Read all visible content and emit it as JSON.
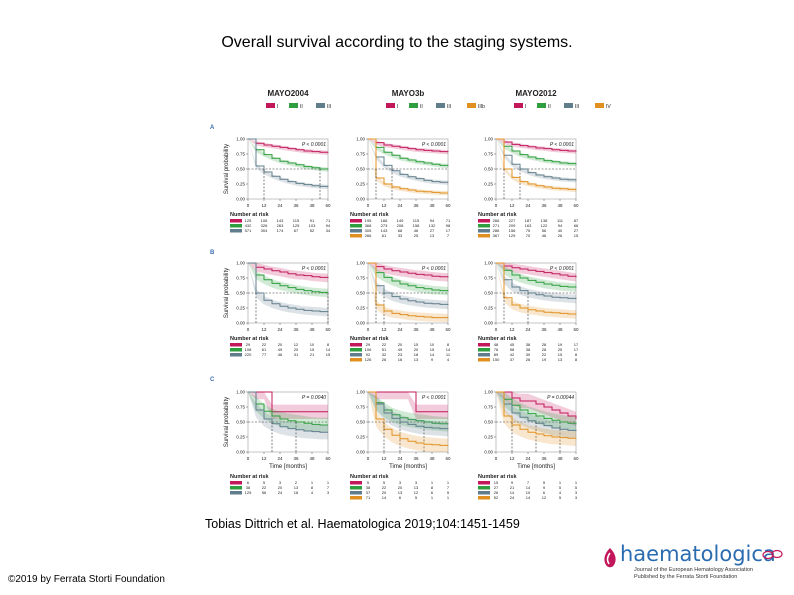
{
  "slide": {
    "title": "Overall survival according to the staging systems.",
    "citation": "Tobias Dittrich et al. Haematologica 2019;104:1451-1459",
    "copyright": "©2019 by Ferrata Storti Foundation",
    "logo": {
      "brand": "haematologica",
      "subtitle_1": "Journal of the European Hematology Association",
      "subtitle_2": "Published by the Ferrata Storti Foundation"
    }
  },
  "figure": {
    "row_labels": [
      "A",
      "B",
      "C"
    ],
    "y_axis_label": "Survival probability",
    "x_axis_label": "Time [months]",
    "risk_table_title": "Number at risk",
    "y_tick_labels": [
      "1.00",
      "0.75",
      "0.50",
      "0.25",
      "0.00"
    ],
    "x_tick_labels": [
      "0",
      "12",
      "24",
      "36",
      "48",
      "60"
    ],
    "colors": {
      "I": "#c2185b",
      "II": "#2e9e3e",
      "III": "#607d8b",
      "IIIb": "#e09020",
      "IV": "#e09020"
    },
    "columns": [
      {
        "title": "MAYO2004",
        "legend": [
          "I",
          "II",
          "III"
        ],
        "pvalues": [
          "P < 0.0001",
          "P < 0.0001",
          "P = 0.0040"
        ],
        "risk": [
          [
            [
              "125",
              "106",
              "143",
              "115",
              "91",
              "71"
            ],
            [
              "432",
              "326",
              "263",
              "125",
              "103",
              "94"
            ],
            [
              "571",
              "304",
              "174",
              "67",
              "52",
              "34"
            ]
          ],
          [
            [
              "29",
              "22",
              "20",
              "12",
              "10",
              "8"
            ],
            [
              "108",
              "61",
              "49",
              "20",
              "15",
              "14"
            ],
            [
              "220",
              "77",
              "46",
              "31",
              "21",
              "15"
            ]
          ],
          [
            [
              "6",
              "5",
              "3",
              "2",
              "1",
              "1"
            ],
            [
              "38",
              "22",
              "20",
              "13",
              "8",
              "7"
            ],
            [
              "125",
              "56",
              "24",
              "18",
              "4",
              "3"
            ]
          ]
        ]
      },
      {
        "title": "MAYO3b",
        "legend": [
          "I",
          "II",
          "III",
          "IIIb"
        ],
        "pvalues": [
          "P < 0.0001",
          "P < 0.0001",
          "P < 0.0001"
        ],
        "risk": [
          [
            [
              "195",
              "166",
              "149",
              "115",
              "94",
              "71"
            ],
            [
              "368",
              "273",
              "208",
              "158",
              "132",
              "98"
            ],
            [
              "305",
              "143",
              "68",
              "46",
              "27",
              "17"
            ],
            [
              "266",
              "61",
              "33",
              "25",
              "13",
              "7"
            ]
          ],
          [
            [
              "29",
              "22",
              "20",
              "15",
              "10",
              "8"
            ],
            [
              "106",
              "51",
              "49",
              "20",
              "15",
              "14"
            ],
            [
              "92",
              "32",
              "23",
              "18",
              "14",
              "11"
            ],
            [
              "126",
              "26",
              "16",
              "13",
              "9",
              "4"
            ]
          ],
          [
            [
              "5",
              "5",
              "3",
              "3",
              "1",
              "1"
            ],
            [
              "38",
              "22",
              "20",
              "13",
              "8",
              "7"
            ],
            [
              "37",
              "20",
              "13",
              "12",
              "6",
              "5"
            ],
            [
              "71",
              "14",
              "6",
              "5",
              "1",
              "1"
            ]
          ]
        ]
      },
      {
        "title": "MAYO2012",
        "legend": [
          "I",
          "II",
          "III",
          "IV"
        ],
        "pvalues": [
          "P < 0.0001",
          "P < 0.0001",
          "P = 0.00044"
        ],
        "risk": [
          [
            [
              "266",
              "227",
              "187",
              "138",
              "111",
              "87"
            ],
            [
              "271",
              "209",
              "163",
              "122",
              "94",
              "66"
            ],
            [
              "286",
              "156",
              "75",
              "56",
              "40",
              "27"
            ],
            [
              "367",
              "129",
              "70",
              "46",
              "26",
              "15"
            ]
          ],
          [
            [
              "48",
              "45",
              "38",
              "28",
              "19",
              "17"
            ],
            [
              "76",
              "58",
              "38",
              "28",
              "25",
              "17"
            ],
            [
              "89",
              "42",
              "30",
              "22",
              "15",
              "8"
            ],
            [
              "150",
              "37",
              "26",
              "19",
              "13",
              "8"
            ]
          ],
          [
            [
              "15",
              "9",
              "7",
              "5",
              "1",
              "1"
            ],
            [
              "27",
              "21",
              "14",
              "9",
              "5",
              "5"
            ],
            [
              "26",
              "14",
              "10",
              "6",
              "4",
              "3"
            ],
            [
              "52",
              "24",
              "14",
              "12",
              "5",
              "3"
            ]
          ]
        ]
      }
    ]
  },
  "chart_data": [
    {
      "type": "line",
      "title": "MAYO2004",
      "panel": "A",
      "xlabel": "Time [months]",
      "ylabel": "Survival probability",
      "xlim": [
        0,
        60
      ],
      "ylim": [
        0,
        1
      ],
      "x": [
        0,
        6,
        12,
        18,
        24,
        30,
        36,
        42,
        48,
        54,
        60
      ],
      "series": [
        {
          "name": "I",
          "values": [
            1.0,
            0.93,
            0.9,
            0.88,
            0.86,
            0.84,
            0.82,
            0.8,
            0.79,
            0.78,
            0.77
          ]
        },
        {
          "name": "II",
          "values": [
            1.0,
            0.82,
            0.74,
            0.68,
            0.63,
            0.6,
            0.57,
            0.54,
            0.52,
            0.5,
            0.49
          ]
        },
        {
          "name": "III",
          "values": [
            1.0,
            0.55,
            0.45,
            0.38,
            0.33,
            0.29,
            0.26,
            0.24,
            0.22,
            0.21,
            0.2
          ]
        }
      ]
    },
    {
      "type": "line",
      "title": "MAYO3b",
      "panel": "A",
      "xlabel": "Time [months]",
      "ylabel": "Survival probability",
      "xlim": [
        0,
        60
      ],
      "ylim": [
        0,
        1
      ],
      "x": [
        0,
        6,
        12,
        18,
        24,
        30,
        36,
        42,
        48,
        54,
        60
      ],
      "series": [
        {
          "name": "I",
          "values": [
            1.0,
            0.94,
            0.9,
            0.88,
            0.86,
            0.84,
            0.82,
            0.81,
            0.8,
            0.79,
            0.78
          ]
        },
        {
          "name": "II",
          "values": [
            1.0,
            0.86,
            0.78,
            0.73,
            0.68,
            0.65,
            0.62,
            0.6,
            0.58,
            0.56,
            0.55
          ]
        },
        {
          "name": "III",
          "values": [
            1.0,
            0.7,
            0.56,
            0.47,
            0.41,
            0.37,
            0.34,
            0.31,
            0.29,
            0.28,
            0.27
          ]
        },
        {
          "name": "IIIb",
          "values": [
            1.0,
            0.35,
            0.25,
            0.2,
            0.17,
            0.15,
            0.13,
            0.12,
            0.11,
            0.1,
            0.1
          ]
        }
      ]
    },
    {
      "type": "line",
      "title": "MAYO2012",
      "panel": "A",
      "xlabel": "Time [months]",
      "ylabel": "Survival probability",
      "xlim": [
        0,
        60
      ],
      "ylim": [
        0,
        1
      ],
      "x": [
        0,
        6,
        12,
        18,
        24,
        30,
        36,
        42,
        48,
        54,
        60
      ],
      "series": [
        {
          "name": "I",
          "values": [
            1.0,
            0.95,
            0.91,
            0.89,
            0.87,
            0.85,
            0.84,
            0.82,
            0.81,
            0.8,
            0.79
          ]
        },
        {
          "name": "II",
          "values": [
            1.0,
            0.88,
            0.8,
            0.74,
            0.7,
            0.67,
            0.64,
            0.62,
            0.6,
            0.59,
            0.58
          ]
        },
        {
          "name": "III",
          "values": [
            1.0,
            0.73,
            0.58,
            0.5,
            0.44,
            0.4,
            0.37,
            0.35,
            0.33,
            0.32,
            0.31
          ]
        },
        {
          "name": "IV",
          "values": [
            1.0,
            0.5,
            0.36,
            0.29,
            0.25,
            0.22,
            0.2,
            0.18,
            0.17,
            0.16,
            0.15
          ]
        }
      ]
    },
    {
      "type": "line",
      "title": "MAYO2004",
      "panel": "B",
      "xlabel": "Time [months]",
      "ylabel": "Survival probability",
      "xlim": [
        0,
        60
      ],
      "ylim": [
        0,
        1
      ],
      "x": [
        0,
        6,
        12,
        18,
        24,
        30,
        36,
        42,
        48,
        54,
        60
      ],
      "series": [
        {
          "name": "I",
          "values": [
            1.0,
            0.93,
            0.9,
            0.87,
            0.85,
            0.82,
            0.8,
            0.79,
            0.77,
            0.76,
            0.75
          ]
        },
        {
          "name": "II",
          "values": [
            1.0,
            0.8,
            0.72,
            0.66,
            0.62,
            0.59,
            0.56,
            0.54,
            0.52,
            0.51,
            0.5
          ]
        },
        {
          "name": "III",
          "values": [
            1.0,
            0.5,
            0.38,
            0.32,
            0.28,
            0.25,
            0.23,
            0.21,
            0.2,
            0.19,
            0.18
          ]
        }
      ]
    },
    {
      "type": "line",
      "title": "MAYO3b",
      "panel": "B",
      "xlabel": "Time [months]",
      "ylabel": "Survival probability",
      "xlim": [
        0,
        60
      ],
      "ylim": [
        0,
        1
      ],
      "x": [
        0,
        6,
        12,
        18,
        24,
        30,
        36,
        42,
        48,
        54,
        60
      ],
      "series": [
        {
          "name": "I",
          "values": [
            1.0,
            0.94,
            0.9,
            0.87,
            0.85,
            0.83,
            0.81,
            0.8,
            0.78,
            0.77,
            0.76
          ]
        },
        {
          "name": "II",
          "values": [
            1.0,
            0.84,
            0.76,
            0.7,
            0.65,
            0.62,
            0.59,
            0.57,
            0.55,
            0.54,
            0.53
          ]
        },
        {
          "name": "III",
          "values": [
            1.0,
            0.62,
            0.5,
            0.44,
            0.4,
            0.37,
            0.35,
            0.33,
            0.32,
            0.31,
            0.3
          ]
        },
        {
          "name": "IIIb",
          "values": [
            1.0,
            0.3,
            0.2,
            0.16,
            0.14,
            0.12,
            0.11,
            0.1,
            0.09,
            0.09,
            0.08
          ]
        }
      ]
    },
    {
      "type": "line",
      "title": "MAYO2012",
      "panel": "B",
      "xlabel": "Time [months]",
      "ylabel": "Survival probability",
      "xlim": [
        0,
        60
      ],
      "ylim": [
        0,
        1
      ],
      "x": [
        0,
        6,
        12,
        18,
        24,
        30,
        36,
        42,
        48,
        54,
        60
      ],
      "series": [
        {
          "name": "I",
          "values": [
            1.0,
            0.95,
            0.92,
            0.9,
            0.88,
            0.86,
            0.84,
            0.82,
            0.8,
            0.78,
            0.76
          ]
        },
        {
          "name": "II",
          "values": [
            1.0,
            0.88,
            0.8,
            0.75,
            0.71,
            0.68,
            0.65,
            0.63,
            0.61,
            0.6,
            0.59
          ]
        },
        {
          "name": "III",
          "values": [
            1.0,
            0.72,
            0.6,
            0.54,
            0.5,
            0.47,
            0.45,
            0.43,
            0.42,
            0.41,
            0.4
          ]
        },
        {
          "name": "IV",
          "values": [
            1.0,
            0.42,
            0.3,
            0.25,
            0.22,
            0.2,
            0.18,
            0.17,
            0.16,
            0.15,
            0.14
          ]
        }
      ]
    },
    {
      "type": "line",
      "title": "MAYO2004",
      "panel": "C",
      "xlabel": "Time [months]",
      "ylabel": "Survival probability",
      "xlim": [
        0,
        60
      ],
      "ylim": [
        0,
        1
      ],
      "x": [
        0,
        6,
        12,
        18,
        24,
        30,
        36,
        42,
        48,
        54,
        60
      ],
      "series": [
        {
          "name": "I",
          "values": [
            1.0,
            1.0,
            1.0,
            0.67,
            0.67,
            0.67,
            0.67,
            0.67,
            0.67,
            0.67,
            0.67
          ]
        },
        {
          "name": "II",
          "values": [
            1.0,
            0.8,
            0.68,
            0.6,
            0.55,
            0.52,
            0.5,
            0.48,
            0.46,
            0.45,
            0.45
          ]
        },
        {
          "name": "III",
          "values": [
            1.0,
            0.7,
            0.55,
            0.47,
            0.42,
            0.39,
            0.37,
            0.35,
            0.34,
            0.33,
            0.33
          ]
        }
      ]
    },
    {
      "type": "line",
      "title": "MAYO3b",
      "panel": "C",
      "xlabel": "Time [months]",
      "ylabel": "Survival probability",
      "xlim": [
        0,
        60
      ],
      "ylim": [
        0,
        1
      ],
      "x": [
        0,
        6,
        12,
        18,
        24,
        30,
        36,
        42,
        48,
        54,
        60
      ],
      "series": [
        {
          "name": "I",
          "values": [
            1.0,
            1.0,
            1.0,
            1.0,
            1.0,
            1.0,
            0.67,
            0.67,
            0.67,
            0.67,
            0.67
          ]
        },
        {
          "name": "II",
          "values": [
            1.0,
            0.82,
            0.7,
            0.62,
            0.57,
            0.54,
            0.52,
            0.5,
            0.48,
            0.47,
            0.46
          ]
        },
        {
          "name": "III",
          "values": [
            1.0,
            0.8,
            0.65,
            0.56,
            0.5,
            0.46,
            0.43,
            0.41,
            0.4,
            0.39,
            0.38
          ]
        },
        {
          "name": "IIIb",
          "values": [
            1.0,
            0.55,
            0.38,
            0.28,
            0.22,
            0.18,
            0.15,
            0.13,
            0.12,
            0.11,
            0.1
          ]
        }
      ]
    },
    {
      "type": "line",
      "title": "MAYO2012",
      "panel": "C",
      "xlabel": "Time [months]",
      "ylabel": "Survival probability",
      "xlim": [
        0,
        60
      ],
      "ylim": [
        0,
        1
      ],
      "x": [
        0,
        6,
        12,
        18,
        24,
        30,
        36,
        42,
        48,
        54,
        60
      ],
      "series": [
        {
          "name": "I",
          "values": [
            1.0,
            1.0,
            0.9,
            0.85,
            0.85,
            0.8,
            0.75,
            0.7,
            0.65,
            0.6,
            0.55
          ]
        },
        {
          "name": "II",
          "values": [
            1.0,
            0.88,
            0.78,
            0.7,
            0.64,
            0.6,
            0.56,
            0.53,
            0.5,
            0.48,
            0.46
          ]
        },
        {
          "name": "III",
          "values": [
            1.0,
            0.8,
            0.65,
            0.58,
            0.52,
            0.48,
            0.44,
            0.4,
            0.38,
            0.36,
            0.35
          ]
        },
        {
          "name": "IV",
          "values": [
            1.0,
            0.6,
            0.45,
            0.38,
            0.33,
            0.3,
            0.27,
            0.25,
            0.24,
            0.23,
            0.22
          ]
        }
      ]
    }
  ]
}
